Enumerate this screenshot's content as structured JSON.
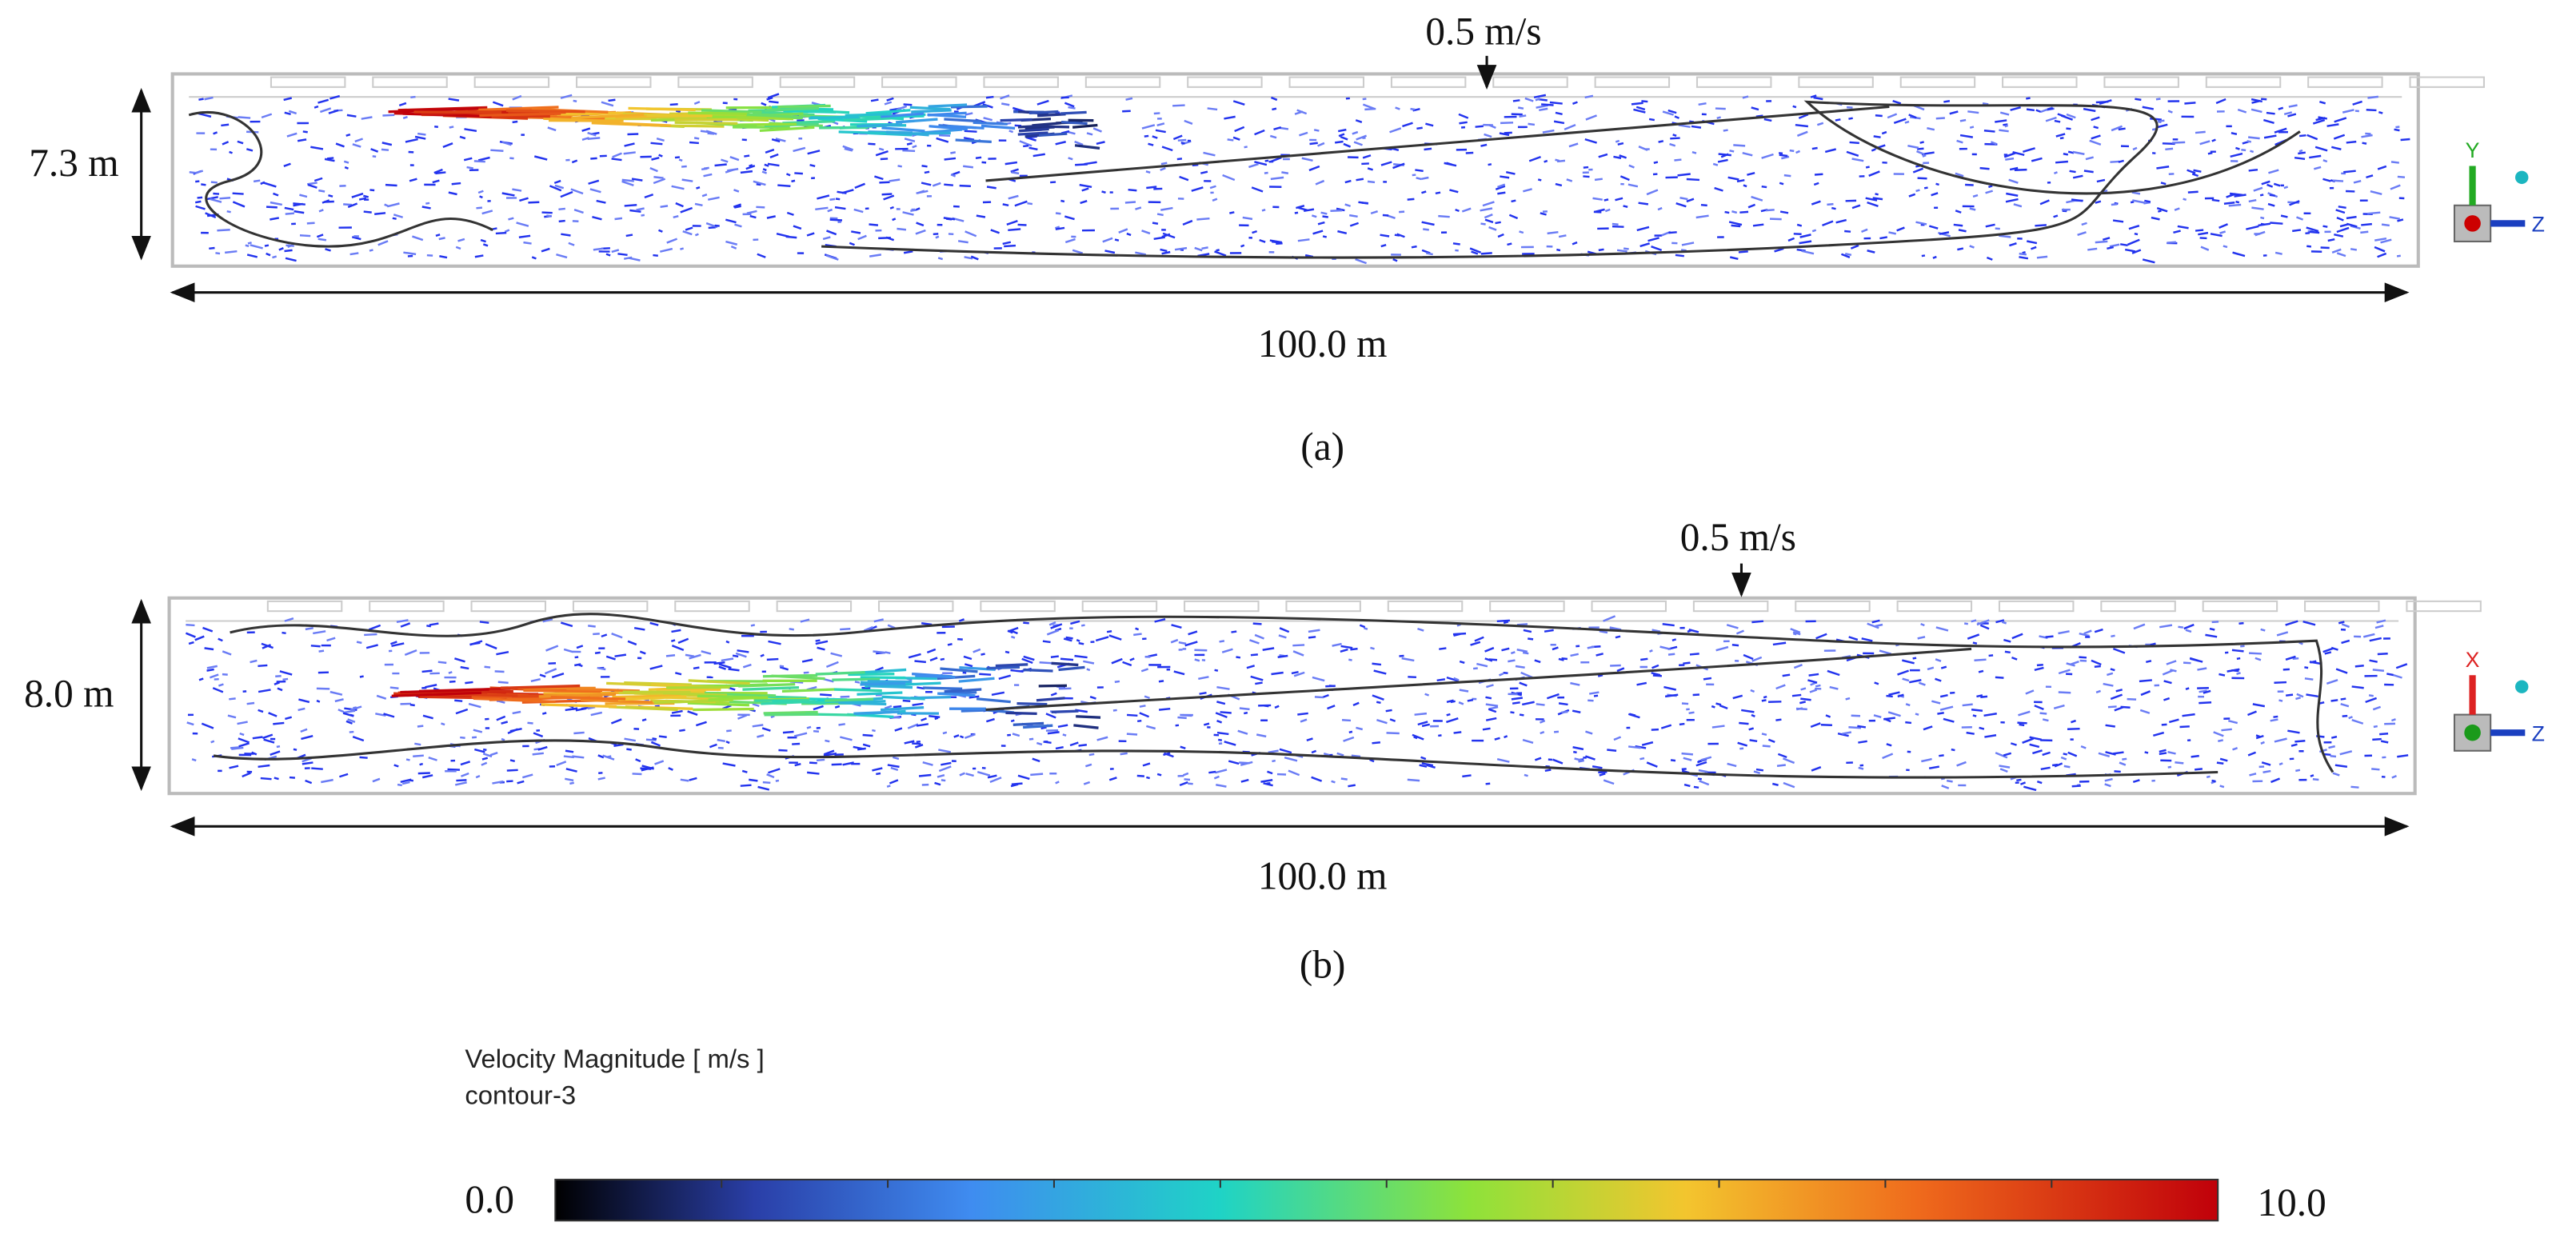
{
  "panels": [
    {
      "height_label": "7.3 m",
      "length_label": "100.0 m",
      "contour_label": "0.5 m/s",
      "caption": "(a)",
      "axes": [
        "Y",
        "Z"
      ]
    },
    {
      "height_label": "8.0 m",
      "length_label": "100.0 m",
      "contour_label": "0.5 m/s",
      "caption": "(b)",
      "axes": [
        "X",
        "Z"
      ]
    }
  ],
  "legend": {
    "title": "Velocity Magnitude [ m/s ]",
    "subtitle": "contour-3",
    "min_label": "0.0",
    "max_label": "10.0"
  }
}
